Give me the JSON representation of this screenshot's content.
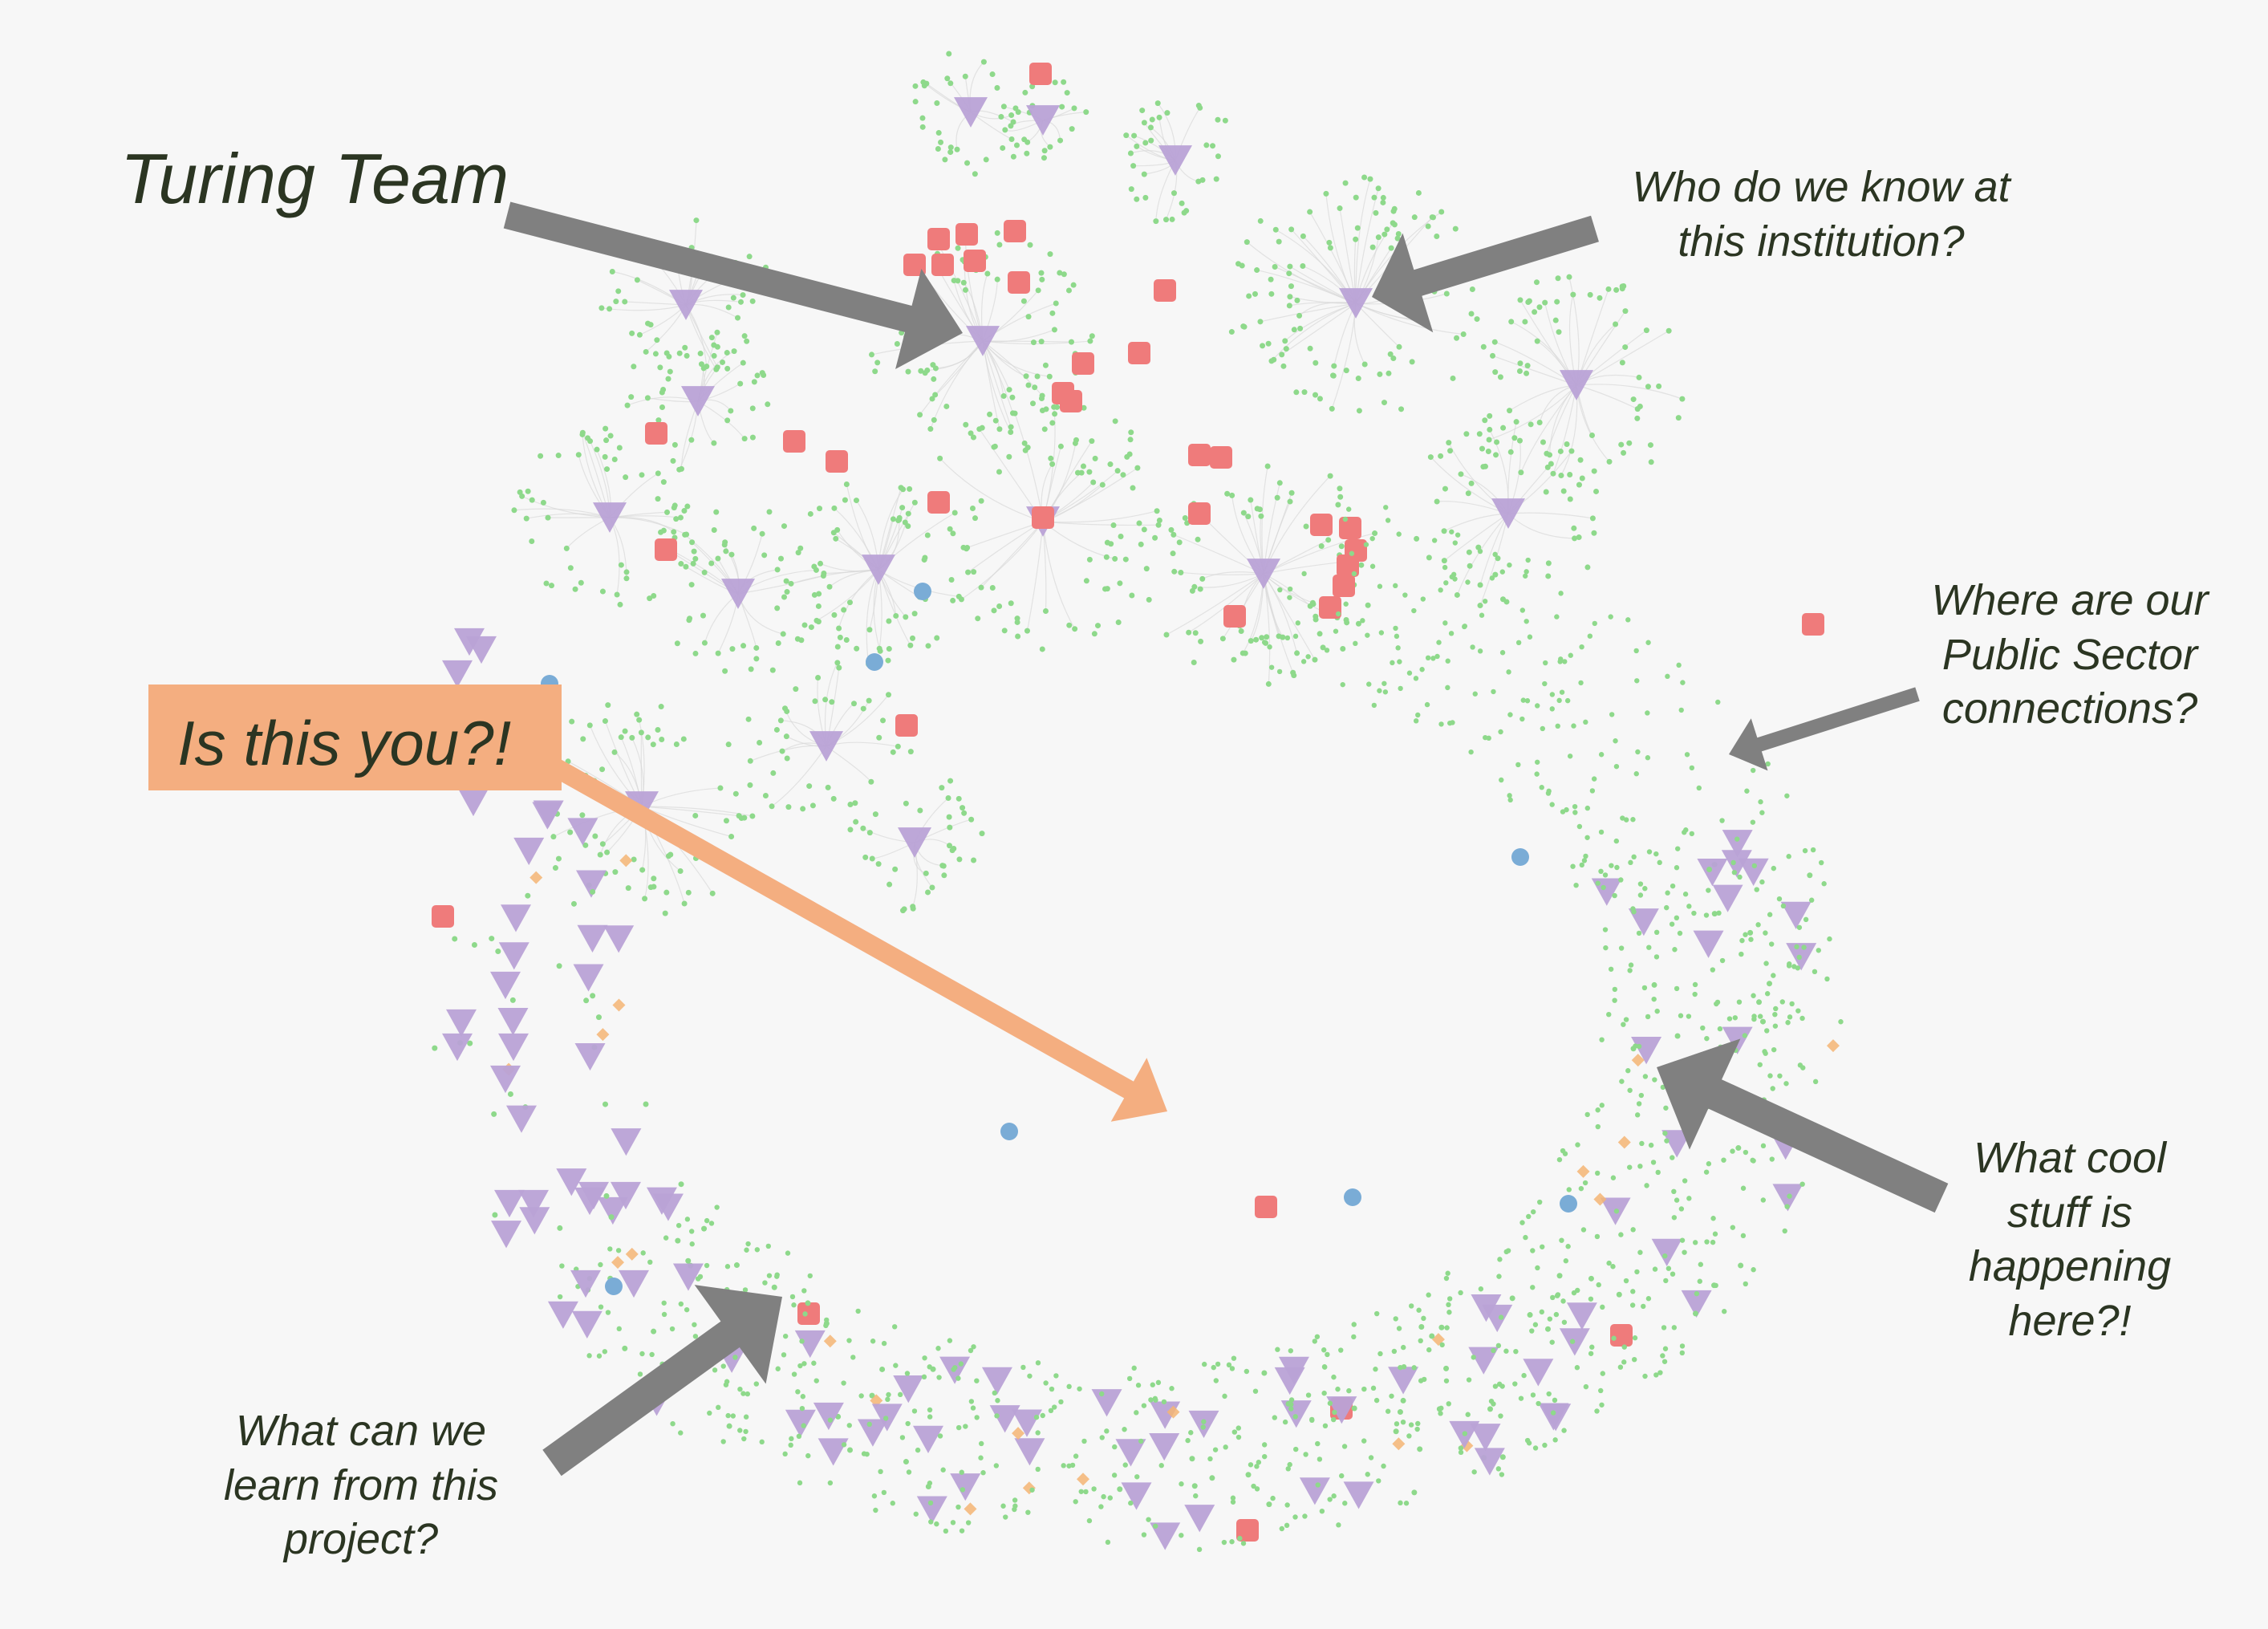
{
  "annotations": {
    "turing_team": "Turing Team",
    "institution": "Who do we know at\nthis institution?",
    "public_sector": "Where are our\nPublic Sector\nconnections?",
    "cool_stuff": "What cool\nstuff is\nhappening\nhere?!",
    "learn_project": "What can we\nlearn from this\nproject?",
    "callout": "Is this you?!"
  },
  "colors": {
    "background": "#f7f7f7",
    "person_node": "#8ed98b",
    "project_node": "#b9a2d6",
    "team_node": "#ef7b7b",
    "org_node": "#f5b574",
    "public_node": "#7aacd6",
    "keyword_node": "#fce6a4",
    "arrow_gray": "#808080",
    "arrow_orange": "#f4ae80"
  },
  "icons": {
    "project": "triangle-down-icon",
    "team": "rounded-square-icon",
    "person": "dot-icon",
    "org": "diamond-icon",
    "public": "circle-icon"
  }
}
